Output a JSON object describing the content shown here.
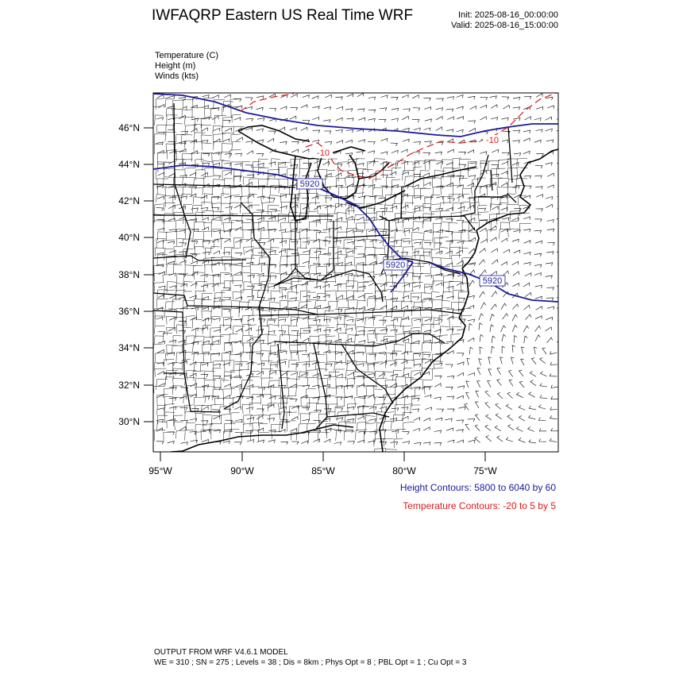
{
  "header": {
    "title": "IWFAQRP Eastern US Real Time WRF",
    "init": "Init: 2025-08-16_00:00:00",
    "valid": "Valid: 2025-08-16_15:00:00"
  },
  "fields": {
    "temperature": "Temperature   (C)",
    "height": "Height   (m)",
    "winds": "Winds   (kts)"
  },
  "map": {
    "lat_labels": [
      "46°N",
      "44°N",
      "42°N",
      "40°N",
      "38°N",
      "36°N",
      "34°N",
      "32°N",
      "30°N"
    ],
    "lon_labels": [
      "95°W",
      "90°W",
      "85°W",
      "80°W",
      "75°W"
    ],
    "height_contour_labels": [
      "5920",
      "5920",
      "5920"
    ],
    "temperature_contour_labels": [
      "-10",
      "-10"
    ],
    "colors": {
      "height": "#1a1a9c",
      "temperature": "#e01818",
      "border": "#000000"
    }
  },
  "legend": {
    "height_contours": "Height Contours: 5800 to 6040 by 60",
    "temperature_contours": "Temperature Contours: -20 to 5 by 5"
  },
  "footer": {
    "line1": "OUTPUT FROM WRF V4.6.1 MODEL",
    "line2": "WE = 310 ; SN = 275 ; Levels = 38 ; Dis = 8km ; Phys Opt = 8 ; PBL Opt = 1 ; Cu Opt = 3"
  }
}
